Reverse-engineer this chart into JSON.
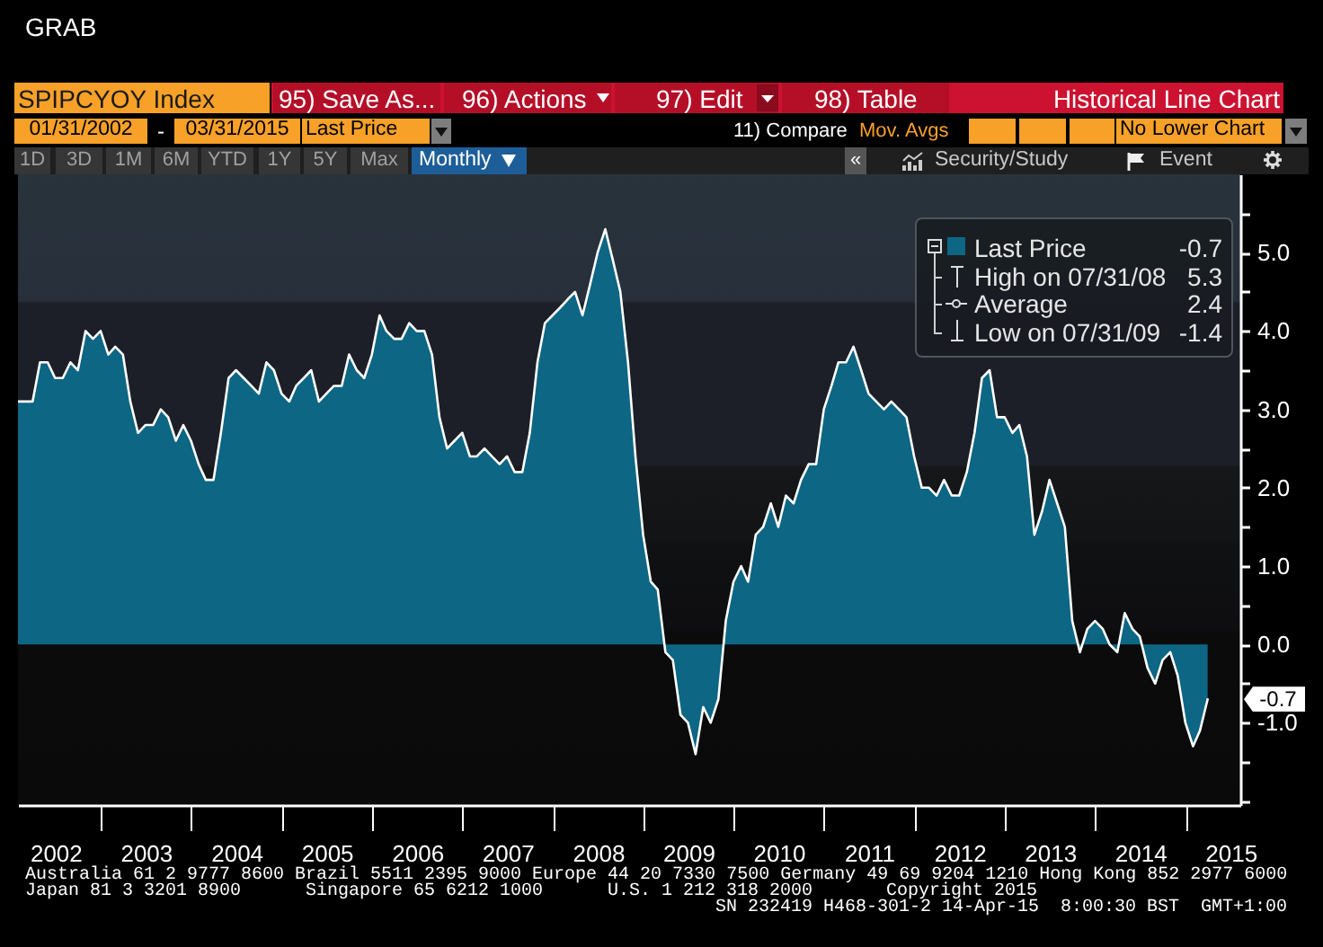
{
  "chart_data": {
    "type": "area",
    "title": "SPIPCYOY Index",
    "subtitle": "Historical Line Chart",
    "x": [
      "2002-01-31",
      "2002-02-28",
      "2002-03-31",
      "2002-04-30",
      "2002-05-31",
      "2002-06-30",
      "2002-07-31",
      "2002-08-31",
      "2002-09-30",
      "2002-10-31",
      "2002-11-30",
      "2002-12-31",
      "2003-01-31",
      "2003-02-28",
      "2003-03-31",
      "2003-04-30",
      "2003-05-31",
      "2003-06-30",
      "2003-07-31",
      "2003-08-31",
      "2003-09-30",
      "2003-10-31",
      "2003-11-30",
      "2003-12-31",
      "2004-01-31",
      "2004-02-29",
      "2004-03-31",
      "2004-04-30",
      "2004-05-31",
      "2004-06-30",
      "2004-07-31",
      "2004-08-31",
      "2004-09-30",
      "2004-10-31",
      "2004-11-30",
      "2004-12-31",
      "2005-01-31",
      "2005-02-28",
      "2005-03-31",
      "2005-04-30",
      "2005-05-31",
      "2005-06-30",
      "2005-07-31",
      "2005-08-31",
      "2005-09-30",
      "2005-10-31",
      "2005-11-30",
      "2005-12-31",
      "2006-01-31",
      "2006-02-28",
      "2006-03-31",
      "2006-04-30",
      "2006-05-31",
      "2006-06-30",
      "2006-07-31",
      "2006-08-31",
      "2006-09-30",
      "2006-10-31",
      "2006-11-30",
      "2006-12-31",
      "2007-01-31",
      "2007-02-28",
      "2007-03-31",
      "2007-04-30",
      "2007-05-31",
      "2007-06-30",
      "2007-07-31",
      "2007-08-31",
      "2007-09-30",
      "2007-10-31",
      "2007-11-30",
      "2007-12-31",
      "2008-01-31",
      "2008-02-29",
      "2008-03-31",
      "2008-04-30",
      "2008-05-31",
      "2008-06-30",
      "2008-07-31",
      "2008-08-31",
      "2008-09-30",
      "2008-10-31",
      "2008-11-30",
      "2008-12-31",
      "2009-01-31",
      "2009-02-28",
      "2009-03-31",
      "2009-04-30",
      "2009-05-31",
      "2009-06-30",
      "2009-07-31",
      "2009-08-31",
      "2009-09-30",
      "2009-10-31",
      "2009-11-30",
      "2009-12-31",
      "2010-01-31",
      "2010-02-28",
      "2010-03-31",
      "2010-04-30",
      "2010-05-31",
      "2010-06-30",
      "2010-07-31",
      "2010-08-31",
      "2010-09-30",
      "2010-10-31",
      "2010-11-30",
      "2010-12-31",
      "2011-01-31",
      "2011-02-28",
      "2011-03-31",
      "2011-04-30",
      "2011-05-31",
      "2011-06-30",
      "2011-07-31",
      "2011-08-31",
      "2011-09-30",
      "2011-10-31",
      "2011-11-30",
      "2011-12-31",
      "2012-01-31",
      "2012-02-29",
      "2012-03-31",
      "2012-04-30",
      "2012-05-31",
      "2012-06-30",
      "2012-07-31",
      "2012-08-31",
      "2012-09-30",
      "2012-10-31",
      "2012-11-30",
      "2012-12-31",
      "2013-01-31",
      "2013-02-28",
      "2013-03-31",
      "2013-04-30",
      "2013-05-31",
      "2013-06-30",
      "2013-07-31",
      "2013-08-31",
      "2013-09-30",
      "2013-10-31",
      "2013-11-30",
      "2013-12-31",
      "2014-01-31",
      "2014-02-28",
      "2014-03-31",
      "2014-04-30",
      "2014-05-31",
      "2014-06-30",
      "2014-07-31",
      "2014-08-31",
      "2014-09-30",
      "2014-10-31",
      "2014-11-30",
      "2014-12-31",
      "2015-01-31",
      "2015-02-28",
      "2015-03-31"
    ],
    "series": [
      {
        "name": "Last Price",
        "color": "#0d6683",
        "values": [
          3.1,
          3.1,
          3.1,
          3.6,
          3.6,
          3.4,
          3.4,
          3.6,
          3.5,
          4.0,
          3.9,
          4.0,
          3.7,
          3.8,
          3.7,
          3.1,
          2.7,
          2.8,
          2.8,
          3.0,
          2.9,
          2.6,
          2.8,
          2.6,
          2.3,
          2.1,
          2.1,
          2.7,
          3.4,
          3.5,
          3.4,
          3.3,
          3.2,
          3.6,
          3.5,
          3.2,
          3.1,
          3.3,
          3.4,
          3.5,
          3.1,
          3.2,
          3.3,
          3.3,
          3.7,
          3.5,
          3.4,
          3.7,
          4.2,
          4.0,
          3.9,
          3.9,
          4.1,
          4.0,
          4.0,
          3.7,
          2.9,
          2.5,
          2.6,
          2.7,
          2.4,
          2.4,
          2.5,
          2.4,
          2.3,
          2.4,
          2.2,
          2.2,
          2.7,
          3.6,
          4.1,
          4.2,
          4.3,
          4.4,
          4.5,
          4.2,
          4.6,
          5.0,
          5.3,
          4.9,
          4.5,
          3.6,
          2.4,
          1.4,
          0.8,
          0.7,
          -0.1,
          -0.2,
          -0.9,
          -1.0,
          -1.4,
          -0.8,
          -1.0,
          -0.7,
          0.3,
          0.8,
          1.0,
          0.8,
          1.4,
          1.5,
          1.8,
          1.5,
          1.9,
          1.8,
          2.1,
          2.3,
          2.3,
          3.0,
          3.3,
          3.6,
          3.6,
          3.8,
          3.5,
          3.2,
          3.1,
          3.0,
          3.1,
          3.0,
          2.9,
          2.4,
          2.0,
          2.0,
          1.9,
          2.1,
          1.9,
          1.9,
          2.2,
          2.7,
          3.4,
          3.5,
          2.9,
          2.9,
          2.7,
          2.8,
          2.4,
          1.4,
          1.7,
          2.1,
          1.8,
          1.5,
          0.3,
          -0.1,
          0.2,
          0.3,
          0.2,
          0.0,
          -0.1,
          0.4,
          0.2,
          0.1,
          -0.3,
          -0.5,
          -0.2,
          -0.1,
          -0.4,
          -1.0,
          -1.3,
          -1.1,
          -0.7
        ]
      }
    ],
    "xlim": [
      "2002-01-31",
      "2015-08-10"
    ],
    "xticks": [
      {
        "value": "2002-07-02",
        "label": "2002"
      },
      {
        "value": "2003-01-01",
        "label": null
      },
      {
        "value": "2003-07-02",
        "label": "2003"
      },
      {
        "value": "2004-01-01",
        "label": null
      },
      {
        "value": "2004-07-02",
        "label": "2004"
      },
      {
        "value": "2005-01-01",
        "label": null
      },
      {
        "value": "2005-07-02",
        "label": "2005"
      },
      {
        "value": "2006-01-01",
        "label": null
      },
      {
        "value": "2006-07-02",
        "label": "2006"
      },
      {
        "value": "2007-01-01",
        "label": null
      },
      {
        "value": "2007-07-02",
        "label": "2007"
      },
      {
        "value": "2008-01-01",
        "label": null
      },
      {
        "value": "2008-07-02",
        "label": "2008"
      },
      {
        "value": "2009-01-01",
        "label": null
      },
      {
        "value": "2009-07-02",
        "label": "2009"
      },
      {
        "value": "2010-01-01",
        "label": null
      },
      {
        "value": "2010-07-02",
        "label": "2010"
      },
      {
        "value": "2011-01-01",
        "label": null
      },
      {
        "value": "2011-07-02",
        "label": "2011"
      },
      {
        "value": "2012-01-01",
        "label": null
      },
      {
        "value": "2012-07-02",
        "label": "2012"
      },
      {
        "value": "2013-01-01",
        "label": null
      },
      {
        "value": "2013-07-02",
        "label": "2013"
      },
      {
        "value": "2014-01-01",
        "label": null
      },
      {
        "value": "2014-07-02",
        "label": "2014"
      },
      {
        "value": "2015-01-01",
        "label": null
      },
      {
        "value": "2015-07-02",
        "label": "2015"
      }
    ],
    "ylim": [
      -2.05,
      6
    ],
    "yticks": [
      {
        "value": -2,
        "label": null
      },
      {
        "value": -1.5,
        "label": null
      },
      {
        "value": -1,
        "label": "-1.0"
      },
      {
        "value": -0.5,
        "label": null
      },
      {
        "value": 0,
        "label": "0.0"
      },
      {
        "value": 0.5,
        "label": null
      },
      {
        "value": 1,
        "label": "1.0"
      },
      {
        "value": 1.5,
        "label": null
      },
      {
        "value": 2,
        "label": "2.0"
      },
      {
        "value": 2.5,
        "label": null
      },
      {
        "value": 3,
        "label": "3.0"
      },
      {
        "value": 3.5,
        "label": null
      },
      {
        "value": 4,
        "label": "4.0"
      },
      {
        "value": 4.5,
        "label": null
      },
      {
        "value": 5,
        "label": "5.0"
      },
      {
        "value": 5.5,
        "label": null
      }
    ],
    "legend": "top right",
    "annotations": [
      "GRAB",
      "95) Save As...",
      "96) Actions",
      "97) Edit",
      "98) Table",
      "01/31/2002",
      "-",
      "03/31/2015",
      "Last Price",
      "11) Compare",
      "Mov. Avgs",
      "No Lower Chart",
      "1D",
      "3D",
      "1M",
      "6M",
      "YTD",
      "1Y",
      "5Y",
      "Max",
      "Monthly",
      "«",
      "Security/Study",
      "Event",
      "-0.7",
      "High on 07/31/08",
      "5.3",
      "Average",
      "2.4",
      "Low on 07/31/09",
      "-1.4",
      {
        "text": "-0.7",
        "y": -0.7
      },
      "Australia 61 2 9777 8600 Brazil 5511 2395 9000 Europe 44 20 7330 7500 Germany 49 69 9204 1210 Hong Kong 852 2977 6000",
      "Japan 81 3 3201 8900",
      "Singapore 65 6212 1000",
      "U.S. 1 212 318 2000",
      "Copyright 2015",
      "SN 232419 H468-301-2 14-Apr-15  8:00:30 BST  GMT+1:00"
    ]
  }
}
